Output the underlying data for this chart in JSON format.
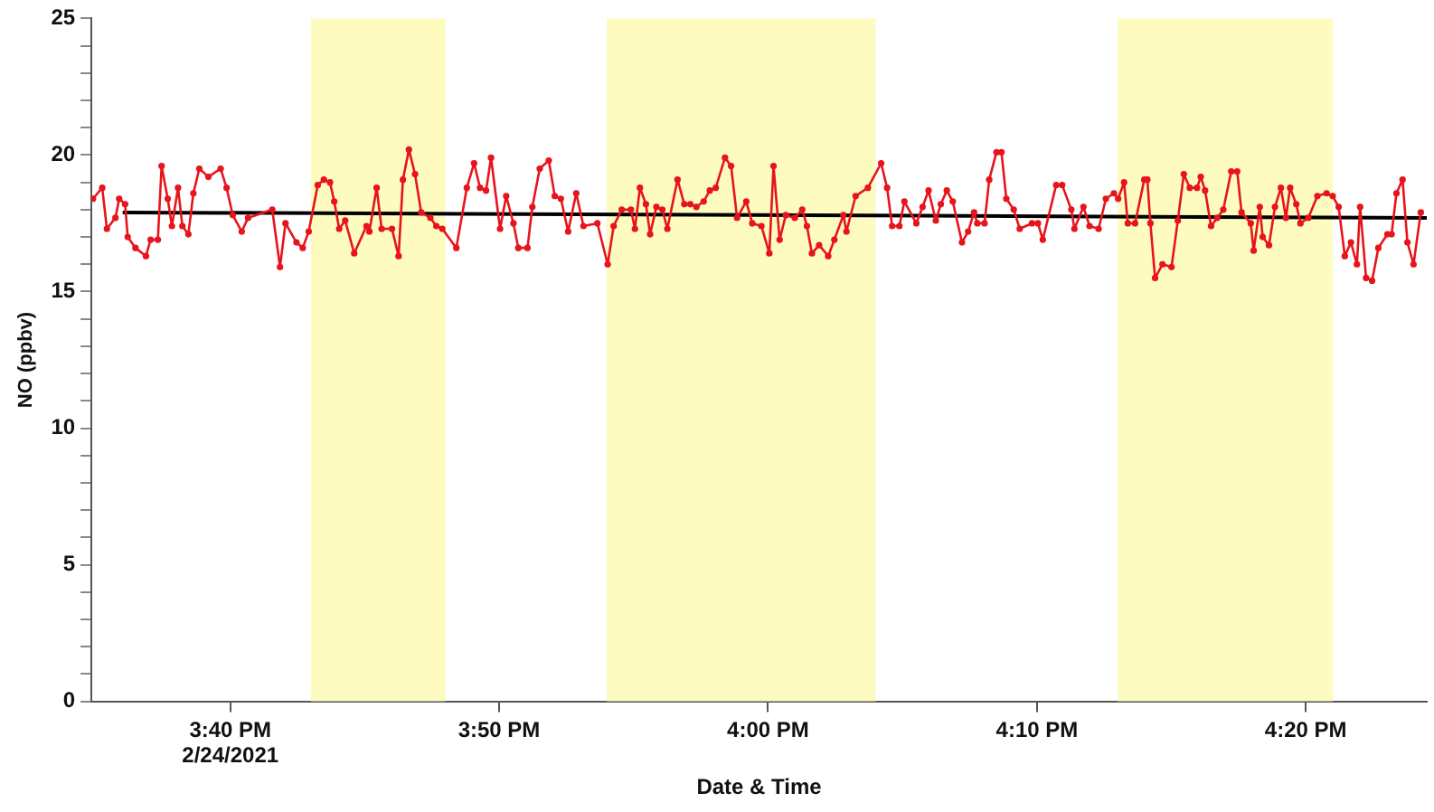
{
  "chart_data": {
    "type": "line",
    "xlabel": "Date & Time",
    "ylabel": "NO (ppbv)",
    "xlim": [
      15.5806,
      16.4083
    ],
    "xticks": [
      {
        "value": 15.6667,
        "label": "3:40 PM\n2/24/2021"
      },
      {
        "value": 15.8333,
        "label": "3:50 PM"
      },
      {
        "value": 16.0,
        "label": "4:00 PM"
      },
      {
        "value": 16.1667,
        "label": "4:10 PM"
      },
      {
        "value": 16.3333,
        "label": "4:20 PM"
      }
    ],
    "ylim": [
      0,
      25
    ],
    "yticks": [
      0,
      {
        "value": 1,
        "label": null
      },
      {
        "value": 2,
        "label": null
      },
      {
        "value": 3,
        "label": null
      },
      {
        "value": 4,
        "label": null
      },
      5,
      {
        "value": 6,
        "label": null
      },
      {
        "value": 7,
        "label": null
      },
      {
        "value": 8,
        "label": null
      },
      {
        "value": 9,
        "label": null
      },
      10,
      {
        "value": 11,
        "label": null
      },
      {
        "value": 12,
        "label": null
      },
      {
        "value": 13,
        "label": null
      },
      {
        "value": 14,
        "label": null
      },
      15,
      {
        "value": 16,
        "label": null
      },
      {
        "value": 17,
        "label": null
      },
      {
        "value": 18,
        "label": null
      },
      {
        "value": 19,
        "label": null
      },
      20,
      {
        "value": 21,
        "label": null
      },
      {
        "value": 22,
        "label": null
      },
      {
        "value": 23,
        "label": null
      },
      {
        "value": 24,
        "label": null
      },
      25
    ],
    "grid": false,
    "legend": false,
    "bands": [
      {
        "axis": "x",
        "from": 15.7167,
        "to": 15.8,
        "color": "#fdfbbf"
      },
      {
        "axis": "x",
        "from": 15.9,
        "to": 16.0667,
        "color": "#fdfbbf"
      },
      {
        "axis": "x",
        "from": 16.2167,
        "to": 16.35,
        "color": "#fdfbbf"
      }
    ],
    "series": [
      {
        "color": "#e8141c",
        "marker": "circle",
        "line_style": "solid",
        "x": [
          15.5816,
          15.5873,
          15.5902,
          15.5955,
          15.5978,
          15.6015,
          15.6031,
          15.6079,
          15.6144,
          15.6173,
          15.6218,
          15.6241,
          15.6279,
          15.6305,
          15.6343,
          15.637,
          15.6407,
          15.6438,
          15.6475,
          15.6531,
          15.6607,
          15.6644,
          15.6682,
          15.6738,
          15.6777,
          15.6927,
          15.6975,
          15.7009,
          15.7077,
          15.7116,
          15.7153,
          15.7209,
          15.7247,
          15.7285,
          15.7311,
          15.7342,
          15.7379,
          15.7435,
          15.7511,
          15.7529,
          15.7574,
          15.7605,
          15.7669,
          15.771,
          15.7737,
          15.7774,
          15.7812,
          15.785,
          15.7907,
          15.7944,
          15.7981,
          15.8068,
          15.8133,
          15.8178,
          15.8215,
          15.8252,
          15.8283,
          15.8339,
          15.8377,
          15.8422,
          15.8452,
          15.8509,
          15.8539,
          15.8585,
          15.8641,
          15.8678,
          15.8716,
          15.8761,
          15.8811,
          15.8856,
          15.8942,
          15.9006,
          15.9043,
          15.9093,
          15.915,
          15.9175,
          15.9206,
          15.9243,
          15.9269,
          15.9308,
          15.9345,
          15.9376,
          15.9439,
          15.9481,
          15.9518,
          15.9556,
          15.9601,
          15.9639,
          15.9676,
          15.9733,
          15.9771,
          15.9808,
          15.9865,
          15.9902,
          15.9959,
          16.0008,
          16.0034,
          16.0072,
          16.011,
          16.0166,
          16.0212,
          16.0241,
          16.0272,
          16.0317,
          16.0373,
          16.0411,
          16.0467,
          16.0486,
          16.0543,
          16.0619,
          16.0701,
          16.0738,
          16.0769,
          16.0814,
          16.0845,
          16.0919,
          16.0958,
          16.0995,
          16.104,
          16.1071,
          16.1108,
          16.1145,
          16.1202,
          16.124,
          16.1277,
          16.1297,
          16.1342,
          16.1371,
          16.1416,
          16.1447,
          16.1477,
          16.1523,
          16.156,
          16.1636,
          16.1673,
          16.1703,
          16.1786,
          16.1823,
          16.188,
          16.1899,
          16.1955,
          16.1993,
          16.2049,
          16.2094,
          16.2144,
          16.217,
          16.2207,
          16.223,
          16.2275,
          16.2332,
          16.2351,
          16.237,
          16.2399,
          16.2445,
          16.2501,
          16.254,
          16.2577,
          16.2614,
          16.2659,
          16.2682,
          16.2709,
          16.2746,
          16.2784,
          16.2822,
          16.2871,
          16.2908,
          16.2935,
          16.2992,
          16.301,
          16.3048,
          16.3066,
          16.3105,
          16.3142,
          16.3179,
          16.321,
          16.3236,
          16.3274,
          16.33,
          16.3349,
          16.3405,
          16.3462,
          16.35,
          16.3537,
          16.3575,
          16.3613,
          16.365,
          16.367,
          16.3707,
          16.3744,
          16.3783,
          16.3839,
          16.3865,
          16.3895,
          16.3933,
          16.3963,
          16.4001,
          16.4046
        ],
        "values": [
          18.4,
          18.8,
          17.3,
          17.7,
          18.4,
          18.2,
          17.0,
          16.6,
          16.3,
          16.9,
          16.9,
          19.6,
          18.4,
          17.4,
          18.8,
          17.4,
          17.1,
          18.6,
          19.5,
          19.2,
          19.5,
          18.8,
          17.8,
          17.2,
          17.7,
          18.0,
          15.9,
          17.5,
          16.8,
          16.6,
          17.2,
          18.9,
          19.1,
          19.0,
          18.3,
          17.3,
          17.6,
          16.4,
          17.4,
          17.2,
          18.8,
          17.3,
          17.3,
          16.3,
          19.1,
          20.2,
          19.3,
          17.9,
          17.7,
          17.4,
          17.3,
          16.6,
          18.8,
          19.7,
          18.8,
          18.7,
          19.9,
          17.3,
          18.5,
          17.5,
          16.6,
          16.6,
          18.1,
          19.5,
          19.8,
          18.5,
          18.4,
          17.2,
          18.6,
          17.4,
          17.5,
          16.0,
          17.4,
          18.0,
          18.0,
          17.3,
          18.8,
          18.2,
          17.1,
          18.1,
          18.0,
          17.3,
          19.1,
          18.2,
          18.2,
          18.1,
          18.3,
          18.7,
          18.8,
          19.9,
          19.6,
          17.7,
          18.3,
          17.5,
          17.4,
          16.4,
          19.6,
          16.9,
          17.8,
          17.7,
          18.0,
          17.4,
          16.4,
          16.7,
          16.3,
          16.9,
          17.8,
          17.2,
          18.5,
          18.8,
          19.7,
          18.8,
          17.4,
          17.4,
          18.3,
          17.5,
          18.1,
          18.7,
          17.6,
          18.2,
          18.7,
          18.3,
          16.8,
          17.2,
          17.9,
          17.5,
          17.5,
          19.1,
          20.1,
          20.1,
          18.4,
          18.0,
          17.3,
          17.5,
          17.5,
          16.9,
          18.9,
          18.9,
          18.0,
          17.3,
          18.1,
          17.4,
          17.3,
          18.4,
          18.6,
          18.4,
          19.0,
          17.5,
          17.5,
          19.1,
          19.1,
          17.5,
          15.5,
          16.0,
          15.9,
          17.6,
          19.3,
          18.8,
          18.8,
          19.2,
          18.7,
          17.4,
          17.7,
          18.0,
          19.4,
          19.4,
          17.9,
          17.5,
          16.5,
          18.1,
          17.0,
          16.7,
          18.1,
          18.8,
          17.7,
          18.8,
          18.2,
          17.5,
          17.7,
          18.5,
          18.6,
          18.5,
          18.1,
          16.3,
          16.8,
          16.0,
          18.1,
          15.5,
          15.4,
          16.6,
          17.1,
          17.1,
          18.6,
          19.1,
          16.8,
          16.0,
          17.9
        ]
      },
      {
        "color": "#000000",
        "marker": "none",
        "line_style": "solid",
        "x": [
          15.6,
          16.4083
        ],
        "values": [
          17.9,
          17.7
        ]
      }
    ]
  }
}
